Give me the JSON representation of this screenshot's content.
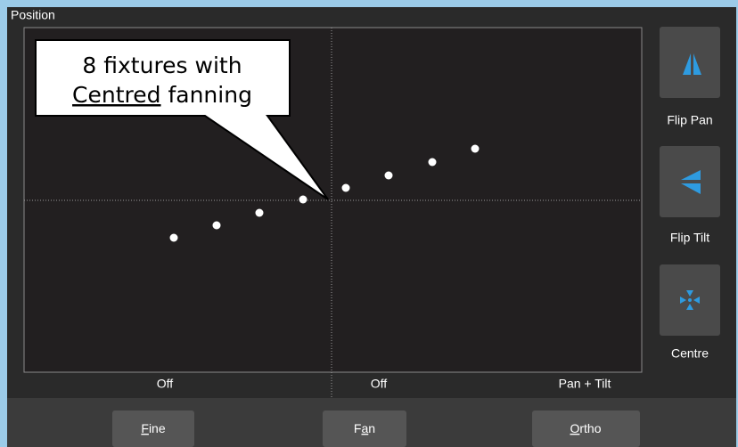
{
  "panel_title": "Position",
  "callout": {
    "line1": "8 fixtures with",
    "line2_underlined": "Centred",
    "line2_rest": "fanning"
  },
  "side_buttons": [
    {
      "label": "Flip Pan"
    },
    {
      "label": "Flip Tilt"
    },
    {
      "label": "Centre"
    }
  ],
  "axis_labels": [
    "Off",
    "Off",
    "Pan + Tilt"
  ],
  "bottom_buttons": [
    {
      "label": "Fine",
      "access_key": "F"
    },
    {
      "label": "Fan",
      "access_key": "a"
    },
    {
      "label": "Ortho",
      "access_key": "O"
    }
  ]
}
